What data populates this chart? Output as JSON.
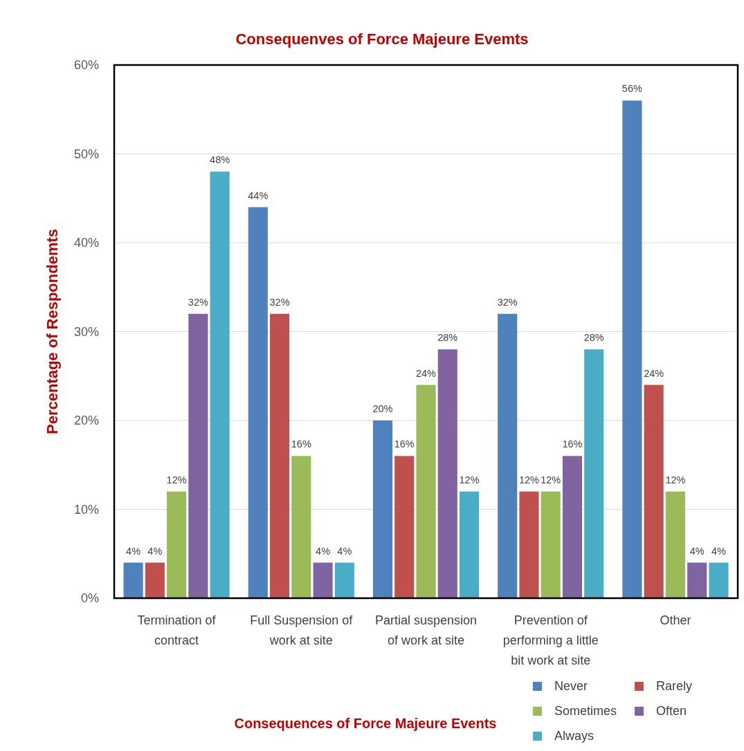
{
  "chart_data": {
    "type": "bar",
    "title": "Consequenves of Force Majeure Evemts",
    "xlabel": "Consequences of Force Majeure Events",
    "ylabel": "Percentage of Respondemts",
    "categories": [
      "Termination of contract",
      "Full Suspension of work at site",
      "Partial suspension of work at site",
      "Prevention of performing a little bit  work at site",
      "Other"
    ],
    "series": [
      {
        "name": "Never",
        "color": "#4f81bd",
        "values": [
          4,
          44,
          20,
          32,
          56
        ],
        "value_labels": [
          "4%",
          "44%",
          "20%",
          "32%",
          "56%"
        ]
      },
      {
        "name": "Rarely",
        "color": "#c0504d",
        "values": [
          4,
          32,
          16,
          12,
          24
        ],
        "value_labels": [
          "4%",
          "32%",
          "16%",
          "12%",
          "24%"
        ]
      },
      {
        "name": "Sometimes",
        "color": "#9bbb59",
        "values": [
          12,
          16,
          24,
          12,
          12
        ],
        "value_labels": [
          "12%",
          "16%",
          "24%",
          "12%",
          "12%"
        ]
      },
      {
        "name": "Often",
        "color": "#8064a2",
        "values": [
          32,
          4,
          28,
          16,
          4
        ],
        "value_labels": [
          "32%",
          "4%",
          "28%",
          "16%",
          "4%"
        ]
      },
      {
        "name": "Always",
        "color": "#4bacc6",
        "values": [
          48,
          4,
          12,
          28,
          4
        ],
        "value_labels": [
          "48%",
          "4%",
          "12%",
          "28%",
          "4%"
        ]
      }
    ],
    "ylim": [
      0,
      60
    ],
    "yticks": [
      {
        "value": 0,
        "label": "0%"
      },
      {
        "value": 10,
        "label": "10%"
      },
      {
        "value": 20,
        "label": "20%"
      },
      {
        "value": 30,
        "label": "30%"
      },
      {
        "value": 40,
        "label": "40%"
      },
      {
        "value": 50,
        "label": "50%"
      },
      {
        "value": 60,
        "label": "60%"
      }
    ],
    "grid": "y",
    "legend": "bottom right"
  }
}
